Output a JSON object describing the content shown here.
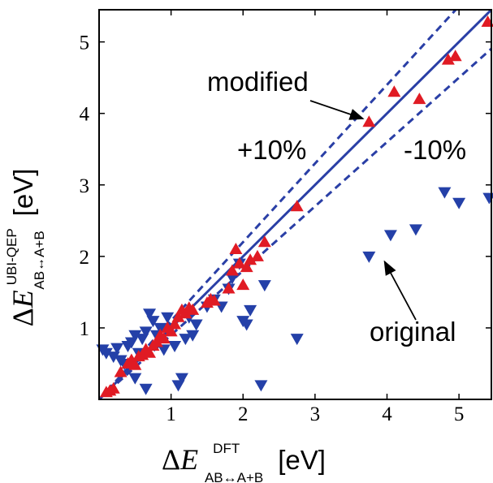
{
  "chart_data": {
    "type": "scatter",
    "title": "",
    "xlim": [
      0,
      5.45
    ],
    "ylim": [
      0,
      5.45
    ],
    "x_ticks": [
      "1",
      "2",
      "3",
      "4",
      "5"
    ],
    "y_ticks": [
      "1",
      "2",
      "3",
      "4",
      "5"
    ],
    "xlabel": {
      "delta": "Δ",
      "symbol": "E",
      "superscript": "DFT",
      "subscript": "AB↔A+B",
      "unit": "[eV]"
    },
    "ylabel": {
      "delta": "Δ",
      "symbol": "E",
      "superscript": "UBI-QEP",
      "subscript": "AB↔A+B",
      "unit": "[eV]"
    },
    "reference_lines": [
      {
        "kind": "parity",
        "style": "solid",
        "slope": 1.0
      },
      {
        "kind": "plus",
        "style": "dashed",
        "slope": 1.1
      },
      {
        "kind": "minus",
        "style": "dashed",
        "slope": 0.9
      }
    ],
    "band_labels": {
      "plus": "+10%",
      "minus": "-10%"
    },
    "annotations": [
      {
        "text": "modified",
        "arrow_to": [
          3.7,
          3.95
        ]
      },
      {
        "text": "original",
        "arrow_to": [
          4.0,
          1.95
        ]
      }
    ],
    "series": [
      {
        "marker": "triangle-up",
        "color": "#e01b24",
        "label_ref": "modified",
        "points": [
          [
            0.1,
            0.1
          ],
          [
            0.15,
            0.12
          ],
          [
            0.2,
            0.15
          ],
          [
            0.3,
            0.38
          ],
          [
            0.4,
            0.5
          ],
          [
            0.45,
            0.55
          ],
          [
            0.5,
            0.48
          ],
          [
            0.55,
            0.6
          ],
          [
            0.6,
            0.62
          ],
          [
            0.65,
            0.7
          ],
          [
            0.7,
            0.65
          ],
          [
            0.75,
            0.75
          ],
          [
            0.8,
            0.8
          ],
          [
            0.85,
            0.9
          ],
          [
            0.9,
            0.85
          ],
          [
            0.95,
            1.0
          ],
          [
            1.0,
            0.95
          ],
          [
            1.05,
            1.05
          ],
          [
            1.1,
            1.15
          ],
          [
            1.15,
            1.25
          ],
          [
            1.2,
            1.2
          ],
          [
            1.25,
            1.28
          ],
          [
            1.3,
            1.25
          ],
          [
            1.5,
            1.35
          ],
          [
            1.55,
            1.4
          ],
          [
            1.6,
            1.38
          ],
          [
            1.8,
            1.55
          ],
          [
            1.85,
            1.8
          ],
          [
            1.9,
            2.1
          ],
          [
            1.95,
            1.9
          ],
          [
            2.0,
            1.6
          ],
          [
            2.05,
            1.85
          ],
          [
            2.1,
            1.95
          ],
          [
            2.2,
            2.0
          ],
          [
            2.3,
            2.2
          ],
          [
            2.75,
            2.7
          ],
          [
            3.75,
            3.88
          ],
          [
            4.1,
            4.3
          ],
          [
            4.45,
            4.2
          ],
          [
            4.85,
            4.75
          ],
          [
            4.95,
            4.8
          ],
          [
            5.4,
            5.28
          ]
        ]
      },
      {
        "marker": "triangle-down",
        "color": "#2440a8",
        "label_ref": "original",
        "points": [
          [
            0.05,
            0.7
          ],
          [
            0.1,
            0.65
          ],
          [
            0.2,
            0.6
          ],
          [
            0.25,
            0.72
          ],
          [
            0.3,
            0.55
          ],
          [
            0.35,
            0.5
          ],
          [
            0.4,
            0.75
          ],
          [
            0.45,
            0.8
          ],
          [
            0.5,
            0.3
          ],
          [
            0.5,
            0.9
          ],
          [
            0.55,
            0.65
          ],
          [
            0.6,
            0.85
          ],
          [
            0.65,
            0.95
          ],
          [
            0.7,
            1.2
          ],
          [
            0.75,
            1.1
          ],
          [
            0.8,
            0.9
          ],
          [
            0.85,
            1.0
          ],
          [
            0.9,
            0.7
          ],
          [
            0.95,
            1.15
          ],
          [
            1.0,
            1.0
          ],
          [
            1.05,
            0.75
          ],
          [
            1.1,
            0.2
          ],
          [
            1.15,
            0.3
          ],
          [
            1.2,
            0.85
          ],
          [
            1.25,
            1.15
          ],
          [
            1.3,
            0.9
          ],
          [
            1.35,
            1.05
          ],
          [
            0.65,
            0.15
          ],
          [
            1.5,
            1.3
          ],
          [
            1.6,
            1.4
          ],
          [
            1.7,
            1.3
          ],
          [
            1.8,
            1.55
          ],
          [
            1.85,
            1.7
          ],
          [
            1.95,
            1.9
          ],
          [
            2.0,
            1.1
          ],
          [
            2.05,
            1.05
          ],
          [
            2.1,
            1.25
          ],
          [
            2.25,
            0.2
          ],
          [
            2.3,
            1.6
          ],
          [
            2.75,
            0.85
          ],
          [
            3.75,
            2.0
          ],
          [
            4.05,
            2.3
          ],
          [
            4.4,
            2.38
          ],
          [
            4.8,
            2.9
          ],
          [
            5.0,
            2.75
          ],
          [
            5.42,
            2.82
          ]
        ]
      }
    ]
  }
}
